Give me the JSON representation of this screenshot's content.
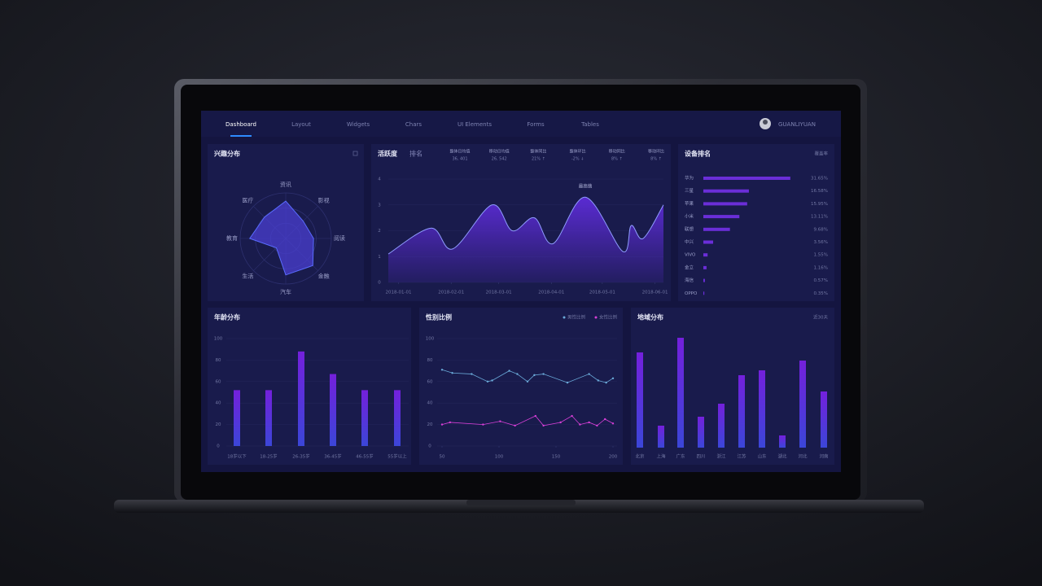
{
  "nav": {
    "items": [
      "Dashboard",
      "Layout",
      "Widgets",
      "Chars",
      "UI Elements",
      "Forms",
      "Tables"
    ],
    "active": 0,
    "user": "GUANLIYUAN"
  },
  "chart_data": [
    {
      "type": "radar",
      "title": "兴趣分布",
      "categories": [
        "资讯",
        "影视",
        "阅读",
        "金融",
        "汽车",
        "生活",
        "教育",
        "医疗"
      ],
      "values": [
        82,
        54,
        61,
        84,
        80,
        29,
        79,
        66
      ],
      "rlim": [
        0,
        100
      ],
      "color": "#4a3fd0"
    },
    {
      "type": "area",
      "title": "活跃度",
      "tab": "排名",
      "stats": [
        {
          "label": "整体日均值",
          "value": "36, 401"
        },
        {
          "label": "移动日均值",
          "value": "26, 542"
        },
        {
          "label": "整体同比",
          "value": "21% ↑"
        },
        {
          "label": "整体环比",
          "value": "-2% ↓"
        },
        {
          "label": "移动同比",
          "value": "8% ↑"
        },
        {
          "label": "移动环比",
          "value": "8% ↑"
        }
      ],
      "x": [
        "2017-12-26",
        "2018-01-20",
        "2018-02-02",
        "2018-02-25",
        "2018-03-09",
        "2018-03-22",
        "2018-04-02",
        "2018-04-21",
        "2018-05-13",
        "2018-05-18",
        "2018-05-25",
        "2018-06-06"
      ],
      "values": [
        1.1,
        2.1,
        1.3,
        3.0,
        2.0,
        2.5,
        1.5,
        3.3,
        1.2,
        2.2,
        1.7,
        3.0
      ],
      "xlim": [
        "2017-12-26",
        "2018-06-06"
      ],
      "xticks": [
        "2018-01-01",
        "2018-02-01",
        "2018-03-01",
        "2018-04-01",
        "2018-05-01",
        "2018-06-01"
      ],
      "ylim": [
        0,
        4
      ],
      "yticks": [
        0,
        1,
        2,
        3,
        4
      ],
      "annotation": "最高值",
      "color": "#5a2bd2"
    },
    {
      "type": "hbar",
      "title": "设备排名",
      "subtitle": "覆盖率",
      "categories": [
        "华为",
        "三星",
        "苹果",
        "小米",
        "联想",
        "中兴",
        "VIVO",
        "金立",
        "海信",
        "OPPO"
      ],
      "values": [
        31.65,
        16.58,
        15.95,
        13.11,
        9.68,
        3.56,
        1.55,
        1.16,
        0.57,
        0.35
      ],
      "value_labels": [
        "31.65%",
        "16.58%",
        "15.95%",
        "13.11%",
        "9.68%",
        "3.56%",
        "1.55%",
        "1.16%",
        "0.57%",
        "0.35%"
      ],
      "xlim": [
        0,
        32
      ],
      "color": "#6a2ed8"
    },
    {
      "type": "bar",
      "title": "年龄分布",
      "categories": [
        "18岁以下",
        "18-25岁",
        "26-35岁",
        "36-45岁",
        "46-55岁",
        "55岁以上"
      ],
      "values": [
        52,
        52,
        88,
        67,
        52,
        52
      ],
      "ylim": [
        0,
        100
      ],
      "yticks": [
        0,
        20,
        40,
        60,
        80,
        100
      ],
      "grid": true,
      "color": "#7420dc"
    },
    {
      "type": "line",
      "title": "性别比例",
      "series": [
        {
          "name": "男性比例",
          "color": "#6aa9d8",
          "x": [
            50,
            59,
            76,
            90,
            94,
            109,
            116,
            125,
            131,
            139,
            160,
            179,
            187,
            194,
            200
          ],
          "values": [
            71,
            68,
            67,
            60,
            61,
            70,
            67,
            60,
            66,
            67,
            59,
            67,
            61,
            59,
            63
          ]
        },
        {
          "name": "女性比例",
          "color": "#d63fd6",
          "x": [
            50,
            57,
            86,
            101,
            114,
            132,
            139,
            154,
            164,
            171,
            179,
            186,
            193,
            200
          ],
          "values": [
            20,
            22,
            20,
            23,
            19,
            28,
            19,
            22,
            28,
            20,
            22,
            19,
            25,
            21
          ]
        }
      ],
      "xlim": [
        50,
        200
      ],
      "xticks": [
        50,
        100,
        150,
        200
      ],
      "ylim": [
        0,
        100
      ],
      "yticks": [
        0,
        20,
        40,
        60,
        80,
        100
      ],
      "grid": true
    },
    {
      "type": "bar",
      "title": "地域分布",
      "subtitle": "近30天",
      "categories": [
        "北京",
        "上海",
        "广东",
        "四川",
        "浙江",
        "江苏",
        "山东",
        "湖北",
        "河北",
        "河南"
      ],
      "values": [
        117,
        27,
        135,
        38,
        54,
        89,
        95,
        15,
        107,
        69
      ],
      "ylim": [
        0,
        140
      ],
      "grid": false,
      "color": "#7420dc"
    }
  ]
}
